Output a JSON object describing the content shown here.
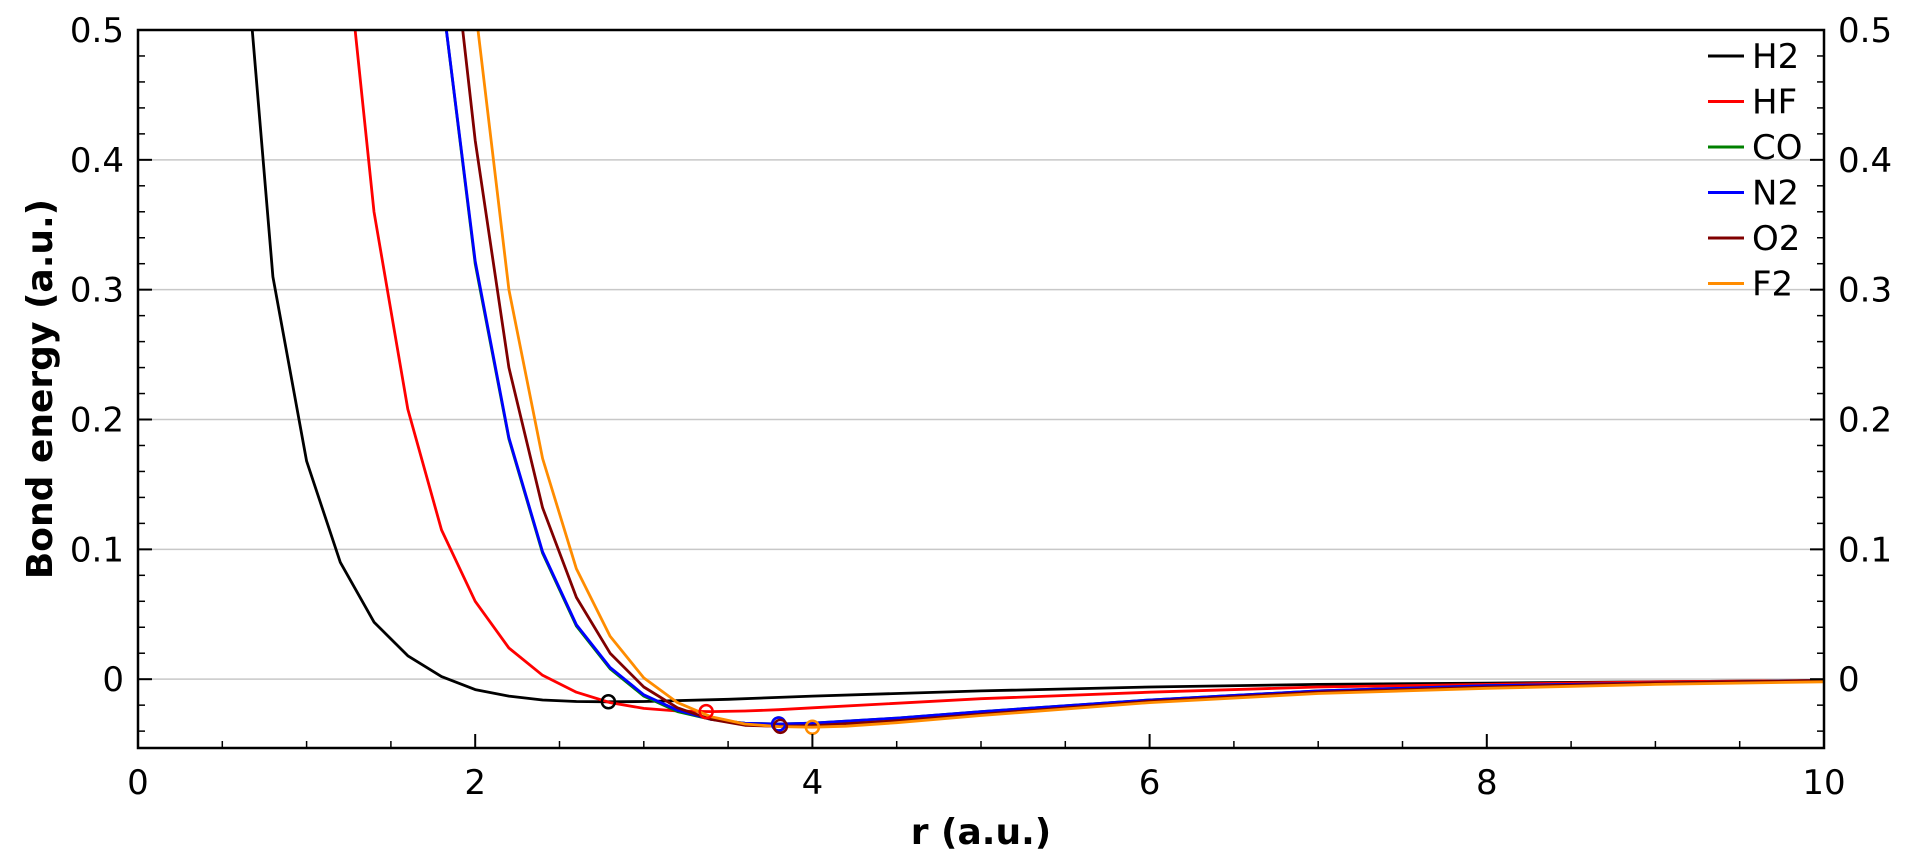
{
  "chart_data": {
    "type": "line",
    "title": "",
    "xlabel": "r (a.u.)",
    "ylabel": "Bond energy (a.u.)",
    "xlim": [
      0,
      10
    ],
    "ylim": [
      -0.053,
      0.5
    ],
    "x_ticks": [
      0,
      2,
      4,
      6,
      8,
      10
    ],
    "x_tick_labels": [
      "0",
      "2",
      "4",
      "6",
      "8",
      "10"
    ],
    "y_ticks": [
      0,
      0.1,
      0.2,
      0.3,
      0.4,
      0.5
    ],
    "y_tick_labels": [
      "0",
      "0.1",
      "0.2",
      "0.3",
      "0.4",
      "0.5"
    ],
    "right_axis_labels": true,
    "grid": "horizontal",
    "legend": "top-right",
    "series": [
      {
        "name": "H2",
        "color": "#000000",
        "x": [
          0.6,
          0.8,
          1.0,
          1.2,
          1.4,
          1.6,
          1.8,
          2.0,
          2.2,
          2.4,
          2.6,
          2.8,
          3.0,
          3.5,
          4.0,
          5.0,
          6.0,
          7.0,
          8.0,
          9.0,
          10.0
        ],
        "y": [
          0.62,
          0.31,
          0.168,
          0.09,
          0.044,
          0.018,
          0.002,
          -0.008,
          -0.013,
          -0.016,
          -0.0172,
          -0.0174,
          -0.0172,
          -0.0155,
          -0.013,
          -0.009,
          -0.006,
          -0.004,
          -0.003,
          -0.002,
          -0.001
        ],
        "marker": {
          "x": 2.79,
          "y": -0.0174
        }
      },
      {
        "name": "HF",
        "color": "#ff0000",
        "x": [
          1.2,
          1.4,
          1.6,
          1.8,
          2.0,
          2.2,
          2.4,
          2.6,
          2.8,
          3.0,
          3.2,
          3.4,
          3.6,
          3.8,
          4.0,
          5.0,
          6.0,
          7.0,
          8.0,
          9.0,
          10.0
        ],
        "y": [
          0.61,
          0.36,
          0.208,
          0.115,
          0.06,
          0.024,
          0.003,
          -0.01,
          -0.018,
          -0.0225,
          -0.0245,
          -0.025,
          -0.0245,
          -0.0235,
          -0.022,
          -0.015,
          -0.01,
          -0.006,
          -0.004,
          -0.002,
          -0.001
        ],
        "marker": {
          "x": 3.37,
          "y": -0.025
        }
      },
      {
        "name": "CO",
        "color": "#008000",
        "x": [
          1.8,
          2.0,
          2.2,
          2.4,
          2.6,
          2.8,
          3.0,
          3.2,
          3.4,
          3.6,
          3.8,
          4.0,
          4.5,
          5.0,
          6.0,
          7.0,
          8.0,
          9.0,
          10.0
        ],
        "y": [
          0.53,
          0.32,
          0.185,
          0.097,
          0.041,
          0.008,
          -0.013,
          -0.025,
          -0.031,
          -0.034,
          -0.0345,
          -0.0338,
          -0.03,
          -0.025,
          -0.016,
          -0.009,
          -0.005,
          -0.003,
          -0.001
        ],
        "marker": {
          "x": 3.8,
          "y": -0.0345
        }
      },
      {
        "name": "N2",
        "color": "#0000ff",
        "x": [
          1.8,
          2.0,
          2.2,
          2.4,
          2.6,
          2.8,
          3.0,
          3.2,
          3.4,
          3.6,
          3.8,
          4.0,
          4.5,
          5.0,
          6.0,
          7.0,
          8.0,
          9.0,
          10.0
        ],
        "y": [
          0.53,
          0.322,
          0.186,
          0.098,
          0.042,
          0.009,
          -0.012,
          -0.024,
          -0.031,
          -0.034,
          -0.0345,
          -0.0338,
          -0.03,
          -0.025,
          -0.016,
          -0.009,
          -0.005,
          -0.003,
          -0.001
        ],
        "marker": {
          "x": 3.8,
          "y": -0.0345
        }
      },
      {
        "name": "O2",
        "color": "#800000",
        "x": [
          1.9,
          2.0,
          2.2,
          2.4,
          2.6,
          2.8,
          3.0,
          3.2,
          3.4,
          3.6,
          3.8,
          4.0,
          4.5,
          5.0,
          6.0,
          7.0,
          8.0,
          9.0,
          10.0
        ],
        "y": [
          0.53,
          0.415,
          0.24,
          0.132,
          0.063,
          0.02,
          -0.006,
          -0.022,
          -0.031,
          -0.0355,
          -0.0363,
          -0.0358,
          -0.032,
          -0.027,
          -0.017,
          -0.01,
          -0.006,
          -0.003,
          -0.001
        ],
        "marker": {
          "x": 3.81,
          "y": -0.0363
        }
      },
      {
        "name": "F2",
        "color": "#ff8c00",
        "x": [
          1.98,
          2.2,
          2.4,
          2.6,
          2.8,
          3.0,
          3.2,
          3.4,
          3.6,
          3.8,
          4.0,
          4.2,
          4.5,
          5.0,
          6.0,
          7.0,
          8.0,
          9.0,
          10.0
        ],
        "y": [
          0.54,
          0.3,
          0.17,
          0.085,
          0.033,
          0.001,
          -0.018,
          -0.029,
          -0.0345,
          -0.0365,
          -0.037,
          -0.0362,
          -0.0335,
          -0.028,
          -0.018,
          -0.011,
          -0.007,
          -0.004,
          -0.002
        ],
        "marker": {
          "x": 4.0,
          "y": -0.037
        }
      }
    ]
  }
}
